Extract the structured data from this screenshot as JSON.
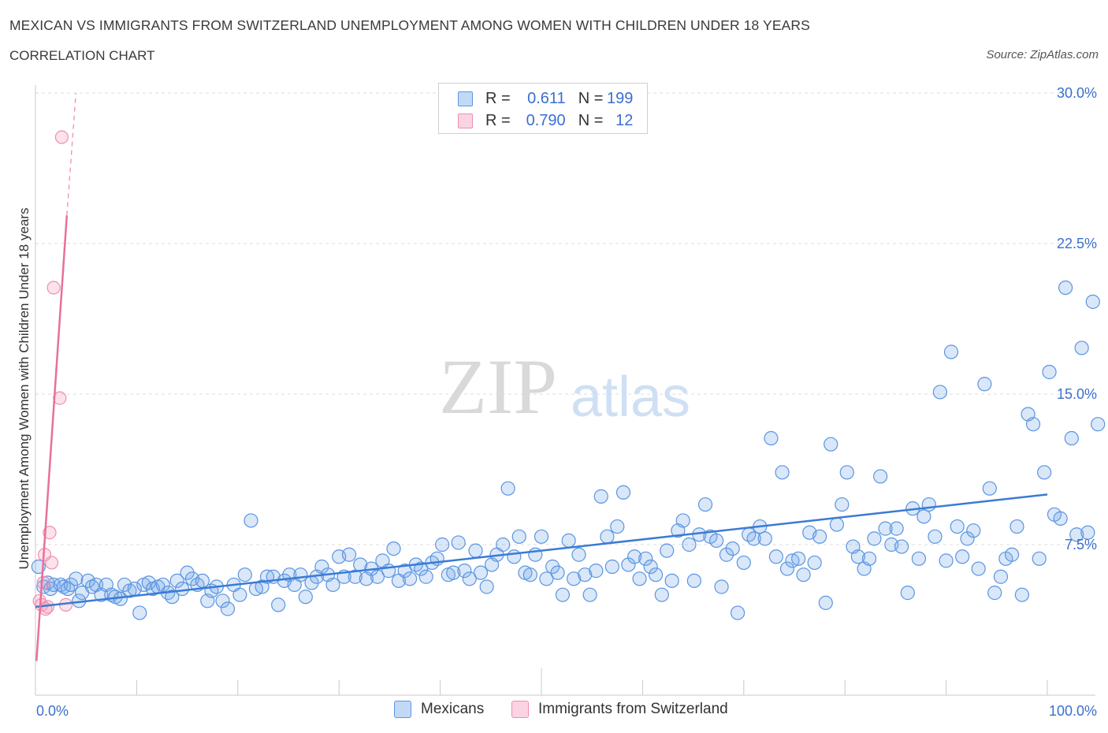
{
  "header": {
    "title": "MEXICAN VS IMMIGRANTS FROM SWITZERLAND UNEMPLOYMENT AMONG WOMEN WITH CHILDREN UNDER 18 YEARS",
    "subtitle": "CORRELATION CHART",
    "source": "Source: ZipAtlas.com"
  },
  "watermark": {
    "zip": "ZIP",
    "atlas": "atlas"
  },
  "colors": {
    "blue": "#3a7bd5",
    "blue_fill": "rgba(120,170,235,0.28)",
    "blue_stroke": "#5b95e0",
    "pink": "#e8709a",
    "pink_fill": "rgba(245,160,190,0.30)",
    "pink_stroke": "#ee8fb0",
    "axis_text": "#3a6fd0",
    "grid": "#dcdcdc"
  },
  "legend_top": {
    "rows": [
      {
        "r_label": "R =",
        "r_value": "0.611",
        "n_label": "N =",
        "n_value": "199"
      },
      {
        "r_label": "R =",
        "r_value": "0.790",
        "n_label": "N =",
        "n_value": "12"
      }
    ]
  },
  "legend_bottom": {
    "items": [
      "Mexicans",
      "Immigrants from Switzerland"
    ]
  },
  "chart_data": {
    "type": "scatter",
    "xlabel": "",
    "ylabel": "Unemployment Among Women with Children Under 18 years",
    "xlim": [
      0,
      100
    ],
    "ylim": [
      0,
      30
    ],
    "x_tick_labels": [
      "0.0%",
      "100.0%"
    ],
    "y_ticks": [
      7.5,
      15.0,
      22.5,
      30.0
    ],
    "y_tick_labels": [
      "7.5%",
      "15.0%",
      "22.5%",
      "30.0%"
    ],
    "grid": true,
    "legend_position": "bottom",
    "series": [
      {
        "name": "Mexicans",
        "trend": {
          "x0": 0,
          "y0": 4.4,
          "x1": 100,
          "y1": 10.0
        },
        "points": [
          [
            0.3,
            6.4
          ],
          [
            0.8,
            5.4
          ],
          [
            1.2,
            5.6
          ],
          [
            1.5,
            5.3
          ],
          [
            1.8,
            5.5
          ],
          [
            2.5,
            5.5
          ],
          [
            2.8,
            5.4
          ],
          [
            3.2,
            5.3
          ],
          [
            3.5,
            5.5
          ],
          [
            4.0,
            5.8
          ],
          [
            4.3,
            4.7
          ],
          [
            4.6,
            5.1
          ],
          [
            5.2,
            5.7
          ],
          [
            5.6,
            5.4
          ],
          [
            6.0,
            5.5
          ],
          [
            6.5,
            5.0
          ],
          [
            7.0,
            5.5
          ],
          [
            7.5,
            5.0
          ],
          [
            7.9,
            4.9
          ],
          [
            8.4,
            4.8
          ],
          [
            8.8,
            5.5
          ],
          [
            9.3,
            5.2
          ],
          [
            9.8,
            5.3
          ],
          [
            10.3,
            4.1
          ],
          [
            10.7,
            5.5
          ],
          [
            11.2,
            5.6
          ],
          [
            11.6,
            5.3
          ],
          [
            12.1,
            5.4
          ],
          [
            12.6,
            5.5
          ],
          [
            13.1,
            5.1
          ],
          [
            13.5,
            4.9
          ],
          [
            14.0,
            5.7
          ],
          [
            14.5,
            5.3
          ],
          [
            15.0,
            6.1
          ],
          [
            15.5,
            5.8
          ],
          [
            16.0,
            5.5
          ],
          [
            16.5,
            5.7
          ],
          [
            17.0,
            4.7
          ],
          [
            17.4,
            5.2
          ],
          [
            17.9,
            5.4
          ],
          [
            18.5,
            4.7
          ],
          [
            19.0,
            4.3
          ],
          [
            19.6,
            5.5
          ],
          [
            20.2,
            5.0
          ],
          [
            20.7,
            6.0
          ],
          [
            21.3,
            8.7
          ],
          [
            21.8,
            5.3
          ],
          [
            22.4,
            5.4
          ],
          [
            22.9,
            5.9
          ],
          [
            23.5,
            5.9
          ],
          [
            24.0,
            4.5
          ],
          [
            24.6,
            5.7
          ],
          [
            25.1,
            6.0
          ],
          [
            25.6,
            5.5
          ],
          [
            26.2,
            6.0
          ],
          [
            26.7,
            4.9
          ],
          [
            27.3,
            5.6
          ],
          [
            27.8,
            5.9
          ],
          [
            28.3,
            6.4
          ],
          [
            28.9,
            6.0
          ],
          [
            29.4,
            5.5
          ],
          [
            30.0,
            6.9
          ],
          [
            30.5,
            5.9
          ],
          [
            31.0,
            7.0
          ],
          [
            31.6,
            5.9
          ],
          [
            32.1,
            6.5
          ],
          [
            32.7,
            5.8
          ],
          [
            33.2,
            6.3
          ],
          [
            33.8,
            5.9
          ],
          [
            34.3,
            6.7
          ],
          [
            34.9,
            6.2
          ],
          [
            35.4,
            7.3
          ],
          [
            35.9,
            5.7
          ],
          [
            36.5,
            6.2
          ],
          [
            37.0,
            5.8
          ],
          [
            37.6,
            6.5
          ],
          [
            38.1,
            6.3
          ],
          [
            38.6,
            5.9
          ],
          [
            39.2,
            6.6
          ],
          [
            39.7,
            6.8
          ],
          [
            40.2,
            7.5
          ],
          [
            40.8,
            6.0
          ],
          [
            41.3,
            6.1
          ],
          [
            41.8,
            7.6
          ],
          [
            42.4,
            6.2
          ],
          [
            42.9,
            5.8
          ],
          [
            43.5,
            7.2
          ],
          [
            44.0,
            6.1
          ],
          [
            44.6,
            5.4
          ],
          [
            45.1,
            6.5
          ],
          [
            45.6,
            7.0
          ],
          [
            46.2,
            7.5
          ],
          [
            46.7,
            10.3
          ],
          [
            47.3,
            6.9
          ],
          [
            47.8,
            7.9
          ],
          [
            48.4,
            6.1
          ],
          [
            48.9,
            6.0
          ],
          [
            49.4,
            7.0
          ],
          [
            50.0,
            7.9
          ],
          [
            50.5,
            5.8
          ],
          [
            51.1,
            6.4
          ],
          [
            51.6,
            6.1
          ],
          [
            52.1,
            5.0
          ],
          [
            52.7,
            7.7
          ],
          [
            53.2,
            5.8
          ],
          [
            53.7,
            7.0
          ],
          [
            54.3,
            6.0
          ],
          [
            54.8,
            5.0
          ],
          [
            55.4,
            6.2
          ],
          [
            55.9,
            9.9
          ],
          [
            56.5,
            7.9
          ],
          [
            57.0,
            6.4
          ],
          [
            57.5,
            8.4
          ],
          [
            58.1,
            10.1
          ],
          [
            58.6,
            6.5
          ],
          [
            59.2,
            6.9
          ],
          [
            59.7,
            5.8
          ],
          [
            60.3,
            6.8
          ],
          [
            60.8,
            6.4
          ],
          [
            61.3,
            6.0
          ],
          [
            61.9,
            5.0
          ],
          [
            62.4,
            7.2
          ],
          [
            62.9,
            5.7
          ],
          [
            63.5,
            8.2
          ],
          [
            64.0,
            8.7
          ],
          [
            64.6,
            7.5
          ],
          [
            65.1,
            5.7
          ],
          [
            65.6,
            8.0
          ],
          [
            66.2,
            9.5
          ],
          [
            66.7,
            7.9
          ],
          [
            67.3,
            7.7
          ],
          [
            67.8,
            5.4
          ],
          [
            68.3,
            7.0
          ],
          [
            68.9,
            7.3
          ],
          [
            69.4,
            4.1
          ],
          [
            70.0,
            6.6
          ],
          [
            70.5,
            8.0
          ],
          [
            71.0,
            7.8
          ],
          [
            71.6,
            8.4
          ],
          [
            72.1,
            7.8
          ],
          [
            72.7,
            12.8
          ],
          [
            73.2,
            6.9
          ],
          [
            73.8,
            11.1
          ],
          [
            74.3,
            6.3
          ],
          [
            74.8,
            6.7
          ],
          [
            75.4,
            6.8
          ],
          [
            75.9,
            6.0
          ],
          [
            76.5,
            8.1
          ],
          [
            77.0,
            6.6
          ],
          [
            77.5,
            7.9
          ],
          [
            78.1,
            4.6
          ],
          [
            78.6,
            12.5
          ],
          [
            79.2,
            8.5
          ],
          [
            79.7,
            9.5
          ],
          [
            80.2,
            11.1
          ],
          [
            80.8,
            7.4
          ],
          [
            81.3,
            6.9
          ],
          [
            81.9,
            6.3
          ],
          [
            82.4,
            6.8
          ],
          [
            82.9,
            7.8
          ],
          [
            83.5,
            10.9
          ],
          [
            84.0,
            8.3
          ],
          [
            84.6,
            7.5
          ],
          [
            85.1,
            8.3
          ],
          [
            85.6,
            7.4
          ],
          [
            86.2,
            5.1
          ],
          [
            86.7,
            9.3
          ],
          [
            87.3,
            6.8
          ],
          [
            87.8,
            8.9
          ],
          [
            88.3,
            9.5
          ],
          [
            88.9,
            7.9
          ],
          [
            89.4,
            15.1
          ],
          [
            90.0,
            6.7
          ],
          [
            90.5,
            17.1
          ],
          [
            91.1,
            8.4
          ],
          [
            91.6,
            6.9
          ],
          [
            92.1,
            7.8
          ],
          [
            92.7,
            8.2
          ],
          [
            93.2,
            6.3
          ],
          [
            93.8,
            15.5
          ],
          [
            94.3,
            10.3
          ],
          [
            94.8,
            5.1
          ],
          [
            95.4,
            5.9
          ],
          [
            95.9,
            6.8
          ],
          [
            96.5,
            7.0
          ],
          [
            97.0,
            8.4
          ],
          [
            97.5,
            5.0
          ],
          [
            98.1,
            14.0
          ],
          [
            98.6,
            13.5
          ],
          [
            99.2,
            6.8
          ],
          [
            99.7,
            11.1
          ],
          [
            100.2,
            16.1
          ],
          [
            100.7,
            9.0
          ],
          [
            101.3,
            8.8
          ],
          [
            101.8,
            20.3
          ],
          [
            102.4,
            12.8
          ],
          [
            102.9,
            8.0
          ],
          [
            103.4,
            17.3
          ],
          [
            104.0,
            8.1
          ],
          [
            104.5,
            19.6
          ],
          [
            105.0,
            13.5
          ]
        ]
      },
      {
        "name": "Immigrants from Switzerland",
        "trend": {
          "x0": 0.1,
          "y0": 1.7,
          "x1": 3.1,
          "y1": 23.9,
          "dash_x1": 4.0,
          "dash_y1": 30.0
        },
        "points": [
          [
            0.4,
            4.7
          ],
          [
            0.6,
            4.5
          ],
          [
            0.8,
            5.6
          ],
          [
            0.9,
            7.0
          ],
          [
            1.0,
            4.3
          ],
          [
            1.2,
            4.4
          ],
          [
            1.4,
            8.1
          ],
          [
            1.6,
            6.6
          ],
          [
            1.8,
            20.3
          ],
          [
            2.4,
            14.8
          ],
          [
            3.0,
            4.5
          ],
          [
            2.6,
            27.8
          ]
        ]
      }
    ]
  }
}
